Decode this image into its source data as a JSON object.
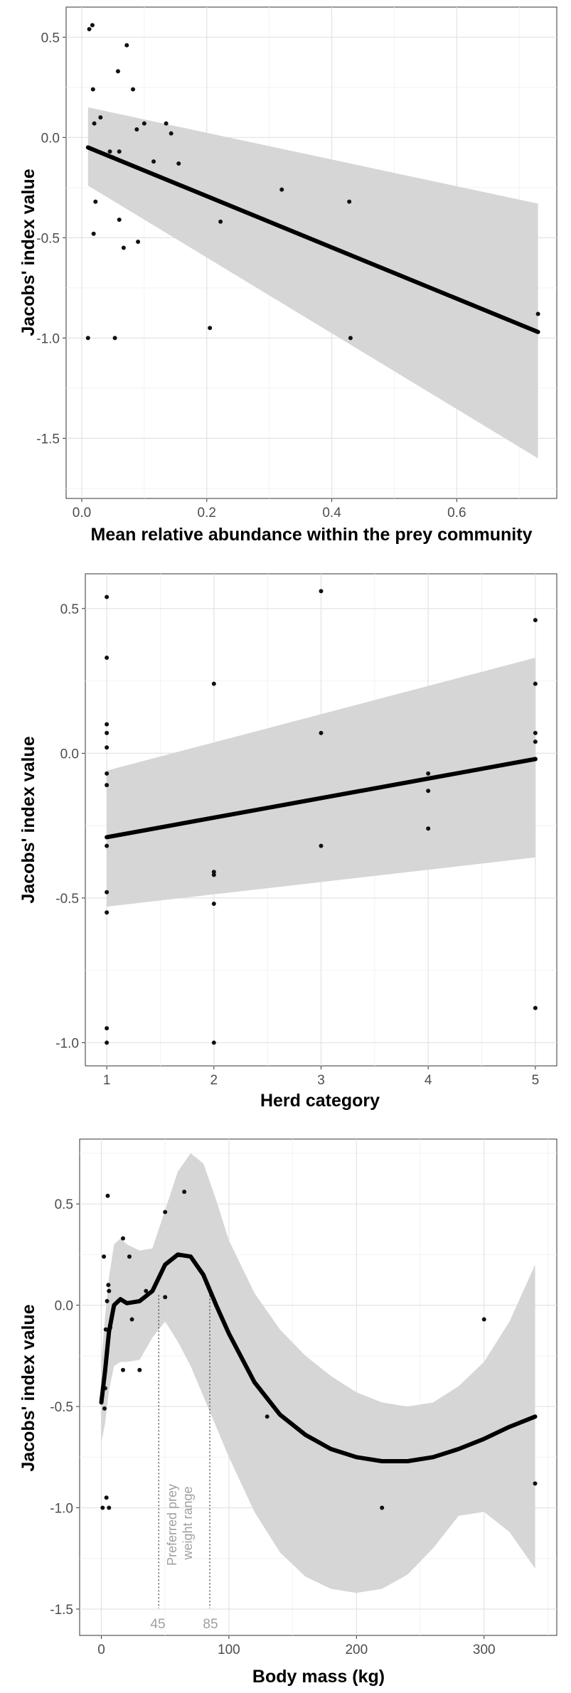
{
  "chart_data": [
    {
      "type": "scatter",
      "xlabel": "Mean relative abundance within the prey community",
      "ylabel": "Jacobs' index value",
      "xlim": [
        -0.025,
        0.76
      ],
      "ylim": [
        -1.8,
        0.65
      ],
      "xticks": [
        0.0,
        0.2,
        0.4,
        0.6
      ],
      "xtick_labels": [
        "0.0",
        "0.2",
        "0.4",
        "0.6"
      ],
      "yticks": [
        -1.5,
        -1.0,
        -0.5,
        0.0,
        0.5
      ],
      "ytick_labels": [
        "-1.5",
        "-1.0",
        "-0.5",
        "0.0",
        "0.5"
      ],
      "grid": true,
      "points": [
        {
          "x": 0.012,
          "y": 0.54
        },
        {
          "x": 0.017,
          "y": 0.56
        },
        {
          "x": 0.018,
          "y": 0.24
        },
        {
          "x": 0.02,
          "y": 0.07
        },
        {
          "x": 0.022,
          "y": -0.32
        },
        {
          "x": 0.019,
          "y": -0.48
        },
        {
          "x": 0.01,
          "y": -1.0
        },
        {
          "x": 0.03,
          "y": 0.1
        },
        {
          "x": 0.045,
          "y": -0.07
        },
        {
          "x": 0.05,
          "y": -0.1
        },
        {
          "x": 0.053,
          "y": -1.0
        },
        {
          "x": 0.058,
          "y": 0.33
        },
        {
          "x": 0.06,
          "y": -0.07
        },
        {
          "x": 0.06,
          "y": -0.41
        },
        {
          "x": 0.067,
          "y": -0.55
        },
        {
          "x": 0.072,
          "y": 0.46
        },
        {
          "x": 0.082,
          "y": 0.24
        },
        {
          "x": 0.088,
          "y": 0.04
        },
        {
          "x": 0.09,
          "y": -0.52
        },
        {
          "x": 0.1,
          "y": 0.07
        },
        {
          "x": 0.115,
          "y": -0.12
        },
        {
          "x": 0.135,
          "y": 0.07
        },
        {
          "x": 0.143,
          "y": 0.02
        },
        {
          "x": 0.155,
          "y": -0.13
        },
        {
          "x": 0.205,
          "y": -0.95
        },
        {
          "x": 0.222,
          "y": -0.42
        },
        {
          "x": 0.32,
          "y": -0.26
        },
        {
          "x": 0.428,
          "y": -0.32
        },
        {
          "x": 0.43,
          "y": -1.0
        },
        {
          "x": 0.73,
          "y": -0.88
        }
      ],
      "fit": {
        "type": "linear",
        "x": [
          0.01,
          0.73
        ],
        "y": [
          -0.05,
          -0.97
        ],
        "ci_upper": [
          0.15,
          -0.33
        ],
        "ci_lower": [
          -0.24,
          -1.6
        ]
      }
    },
    {
      "type": "scatter",
      "xlabel": "Herd category",
      "ylabel": "Jacobs' index value",
      "xlim": [
        0.8,
        5.2
      ],
      "ylim": [
        -1.08,
        0.62
      ],
      "xticks": [
        1,
        2,
        3,
        4,
        5
      ],
      "xtick_labels": [
        "1",
        "2",
        "3",
        "4",
        "5"
      ],
      "yticks": [
        -1.0,
        -0.5,
        0.0,
        0.5
      ],
      "ytick_labels": [
        "-1.0",
        "-0.5",
        "0.0",
        "0.5"
      ],
      "grid": true,
      "points": [
        {
          "x": 1,
          "y": 0.54
        },
        {
          "x": 1,
          "y": 0.33
        },
        {
          "x": 1,
          "y": 0.1
        },
        {
          "x": 1,
          "y": 0.07
        },
        {
          "x": 1,
          "y": 0.02
        },
        {
          "x": 1,
          "y": -0.07
        },
        {
          "x": 1,
          "y": -0.11
        },
        {
          "x": 1,
          "y": -0.32
        },
        {
          "x": 1,
          "y": -0.48
        },
        {
          "x": 1,
          "y": -0.55
        },
        {
          "x": 1,
          "y": -0.95
        },
        {
          "x": 1,
          "y": -1.0
        },
        {
          "x": 2,
          "y": 0.24
        },
        {
          "x": 2,
          "y": -0.41
        },
        {
          "x": 2,
          "y": -0.42
        },
        {
          "x": 2,
          "y": -0.52
        },
        {
          "x": 2,
          "y": -1.0
        },
        {
          "x": 3,
          "y": 0.56
        },
        {
          "x": 3,
          "y": 0.07
        },
        {
          "x": 3,
          "y": -0.32
        },
        {
          "x": 4,
          "y": -0.07
        },
        {
          "x": 4,
          "y": -0.13
        },
        {
          "x": 4,
          "y": -0.26
        },
        {
          "x": 5,
          "y": 0.46
        },
        {
          "x": 5,
          "y": 0.24
        },
        {
          "x": 5,
          "y": 0.07
        },
        {
          "x": 5,
          "y": 0.04
        },
        {
          "x": 5,
          "y": -0.88
        }
      ],
      "fit": {
        "type": "linear",
        "x": [
          1,
          5
        ],
        "y": [
          -0.29,
          -0.02
        ],
        "ci_upper": [
          -0.06,
          0.33
        ],
        "ci_lower": [
          -0.53,
          -0.36
        ]
      }
    },
    {
      "type": "scatter",
      "xlabel": "Body mass (kg)",
      "ylabel": "Jacobs' index value",
      "xlim": [
        -17,
        357
      ],
      "ylim": [
        -1.63,
        0.82
      ],
      "xticks": [
        0,
        100,
        200,
        300
      ],
      "xtick_labels": [
        "0",
        "100",
        "200",
        "300"
      ],
      "yticks": [
        -1.5,
        -1.0,
        -0.5,
        0.0,
        0.5
      ],
      "ytick_labels": [
        "-1.5",
        "-1.0",
        "-0.5",
        "0.0",
        "0.5"
      ],
      "grid": true,
      "points": [
        {
          "x": 1,
          "y": -1.0
        },
        {
          "x": 2,
          "y": 0.24
        },
        {
          "x": 2.5,
          "y": -0.51
        },
        {
          "x": 3,
          "y": -0.41
        },
        {
          "x": 3.5,
          "y": -0.12
        },
        {
          "x": 4,
          "y": -0.95
        },
        {
          "x": 4.5,
          "y": 0.02
        },
        {
          "x": 5,
          "y": 0.54
        },
        {
          "x": 5.5,
          "y": 0.1
        },
        {
          "x": 6,
          "y": 0.07
        },
        {
          "x": 6,
          "y": -1.0
        },
        {
          "x": 7,
          "y": -0.11
        },
        {
          "x": 17,
          "y": 0.33
        },
        {
          "x": 17,
          "y": -0.32
        },
        {
          "x": 22,
          "y": 0.24
        },
        {
          "x": 24,
          "y": -0.07
        },
        {
          "x": 30,
          "y": -0.32
        },
        {
          "x": 35,
          "y": 0.07
        },
        {
          "x": 50,
          "y": 0.46
        },
        {
          "x": 50,
          "y": 0.04
        },
        {
          "x": 65,
          "y": 0.56
        },
        {
          "x": 130,
          "y": -0.55
        },
        {
          "x": 220,
          "y": -1.0
        },
        {
          "x": 300,
          "y": -0.07
        },
        {
          "x": 340,
          "y": -0.88
        }
      ],
      "fit": {
        "type": "loess",
        "x": [
          0,
          3,
          6,
          10,
          15,
          20,
          30,
          40,
          50,
          60,
          70,
          80,
          90,
          100,
          120,
          140,
          160,
          180,
          200,
          220,
          240,
          260,
          280,
          300,
          320,
          340
        ],
        "y": [
          -0.48,
          -0.32,
          -0.13,
          0.0,
          0.03,
          0.01,
          0.02,
          0.07,
          0.2,
          0.25,
          0.24,
          0.15,
          0.0,
          -0.14,
          -0.38,
          -0.54,
          -0.64,
          -0.71,
          -0.75,
          -0.77,
          -0.77,
          -0.75,
          -0.71,
          -0.66,
          -0.6,
          -0.55
        ],
        "ci_upper": [
          -0.28,
          -0.05,
          0.14,
          0.3,
          0.33,
          0.3,
          0.27,
          0.28,
          0.47,
          0.66,
          0.75,
          0.7,
          0.52,
          0.32,
          0.06,
          -0.12,
          -0.25,
          -0.35,
          -0.43,
          -0.48,
          -0.5,
          -0.48,
          -0.4,
          -0.28,
          -0.08,
          0.2
        ],
        "ci_lower": [
          -0.68,
          -0.58,
          -0.42,
          -0.3,
          -0.28,
          -0.28,
          -0.27,
          -0.16,
          -0.08,
          -0.18,
          -0.3,
          -0.45,
          -0.6,
          -0.75,
          -1.02,
          -1.22,
          -1.34,
          -1.4,
          -1.42,
          -1.4,
          -1.33,
          -1.2,
          -1.04,
          -1.02,
          -1.12,
          -1.3
        ]
      },
      "annotations": {
        "range_label_line1": "Preferred prey",
        "range_label_line2": "weight range",
        "lower_value": 45,
        "upper_value": 85,
        "lower_label": "45",
        "upper_label": "85"
      }
    }
  ]
}
